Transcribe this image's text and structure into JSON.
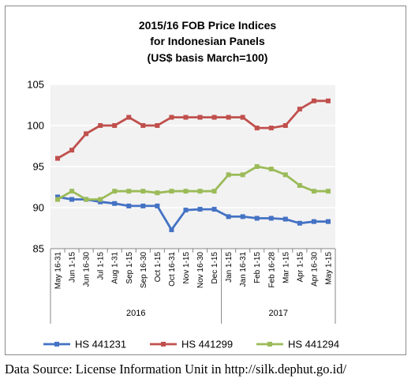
{
  "chart_data": {
    "type": "line",
    "title_lines": [
      "2015/16 FOB Price Indices",
      "for Indonesian Panels",
      "(US$ basis March=100)"
    ],
    "categories": [
      "May 16-31",
      "Jun 1-15",
      "Jun 16-30",
      "Jul 1-15",
      "Aug 1-31",
      "Sep 1-15",
      "Sep 16-30",
      "Oct 1-15",
      "Oct 16-31",
      "Nov 1-15",
      "Nov 16-30",
      "Dec 1-15",
      "Jan 1-15",
      "Jan 16-31",
      "Feb 1-15",
      "Feb 16-28",
      "Mar 1-15",
      "Apr 1-15",
      "Apr 16-30",
      "May 1-15"
    ],
    "year_groups": [
      {
        "label": "2016",
        "start": 0,
        "end": 11
      },
      {
        "label": "2017",
        "start": 12,
        "end": 19
      }
    ],
    "ylim": [
      85,
      105
    ],
    "yticks": [
      "85",
      "90",
      "95",
      "100",
      "105"
    ],
    "grid": true,
    "legend_position": "bottom",
    "series": [
      {
        "name": "HS 441231",
        "color": "#4472C4",
        "values": [
          91.3,
          91.0,
          91.0,
          90.7,
          90.5,
          90.2,
          90.2,
          90.2,
          87.3,
          89.7,
          89.8,
          89.8,
          88.9,
          88.9,
          88.7,
          88.7,
          88.6,
          88.1,
          88.3,
          88.3
        ]
      },
      {
        "name": "HS 441299",
        "color": "#C0504D",
        "values": [
          96.0,
          97.0,
          99.0,
          100.0,
          100.0,
          101.0,
          100.0,
          100.0,
          101.0,
          101.0,
          101.0,
          101.0,
          101.0,
          101.0,
          99.7,
          99.7,
          100.0,
          102.0,
          103.0,
          103.0
        ]
      },
      {
        "name": "HS 441294",
        "color": "#9BBB59",
        "values": [
          91.0,
          92.0,
          91.0,
          91.0,
          92.0,
          92.0,
          92.0,
          91.8,
          92.0,
          92.0,
          92.0,
          92.0,
          94.0,
          94.0,
          95.0,
          94.7,
          94.0,
          92.7,
          92.0,
          92.0
        ]
      }
    ]
  },
  "source_note": "Data Source: License Information Unit in http://silk.dephut.go.id/"
}
